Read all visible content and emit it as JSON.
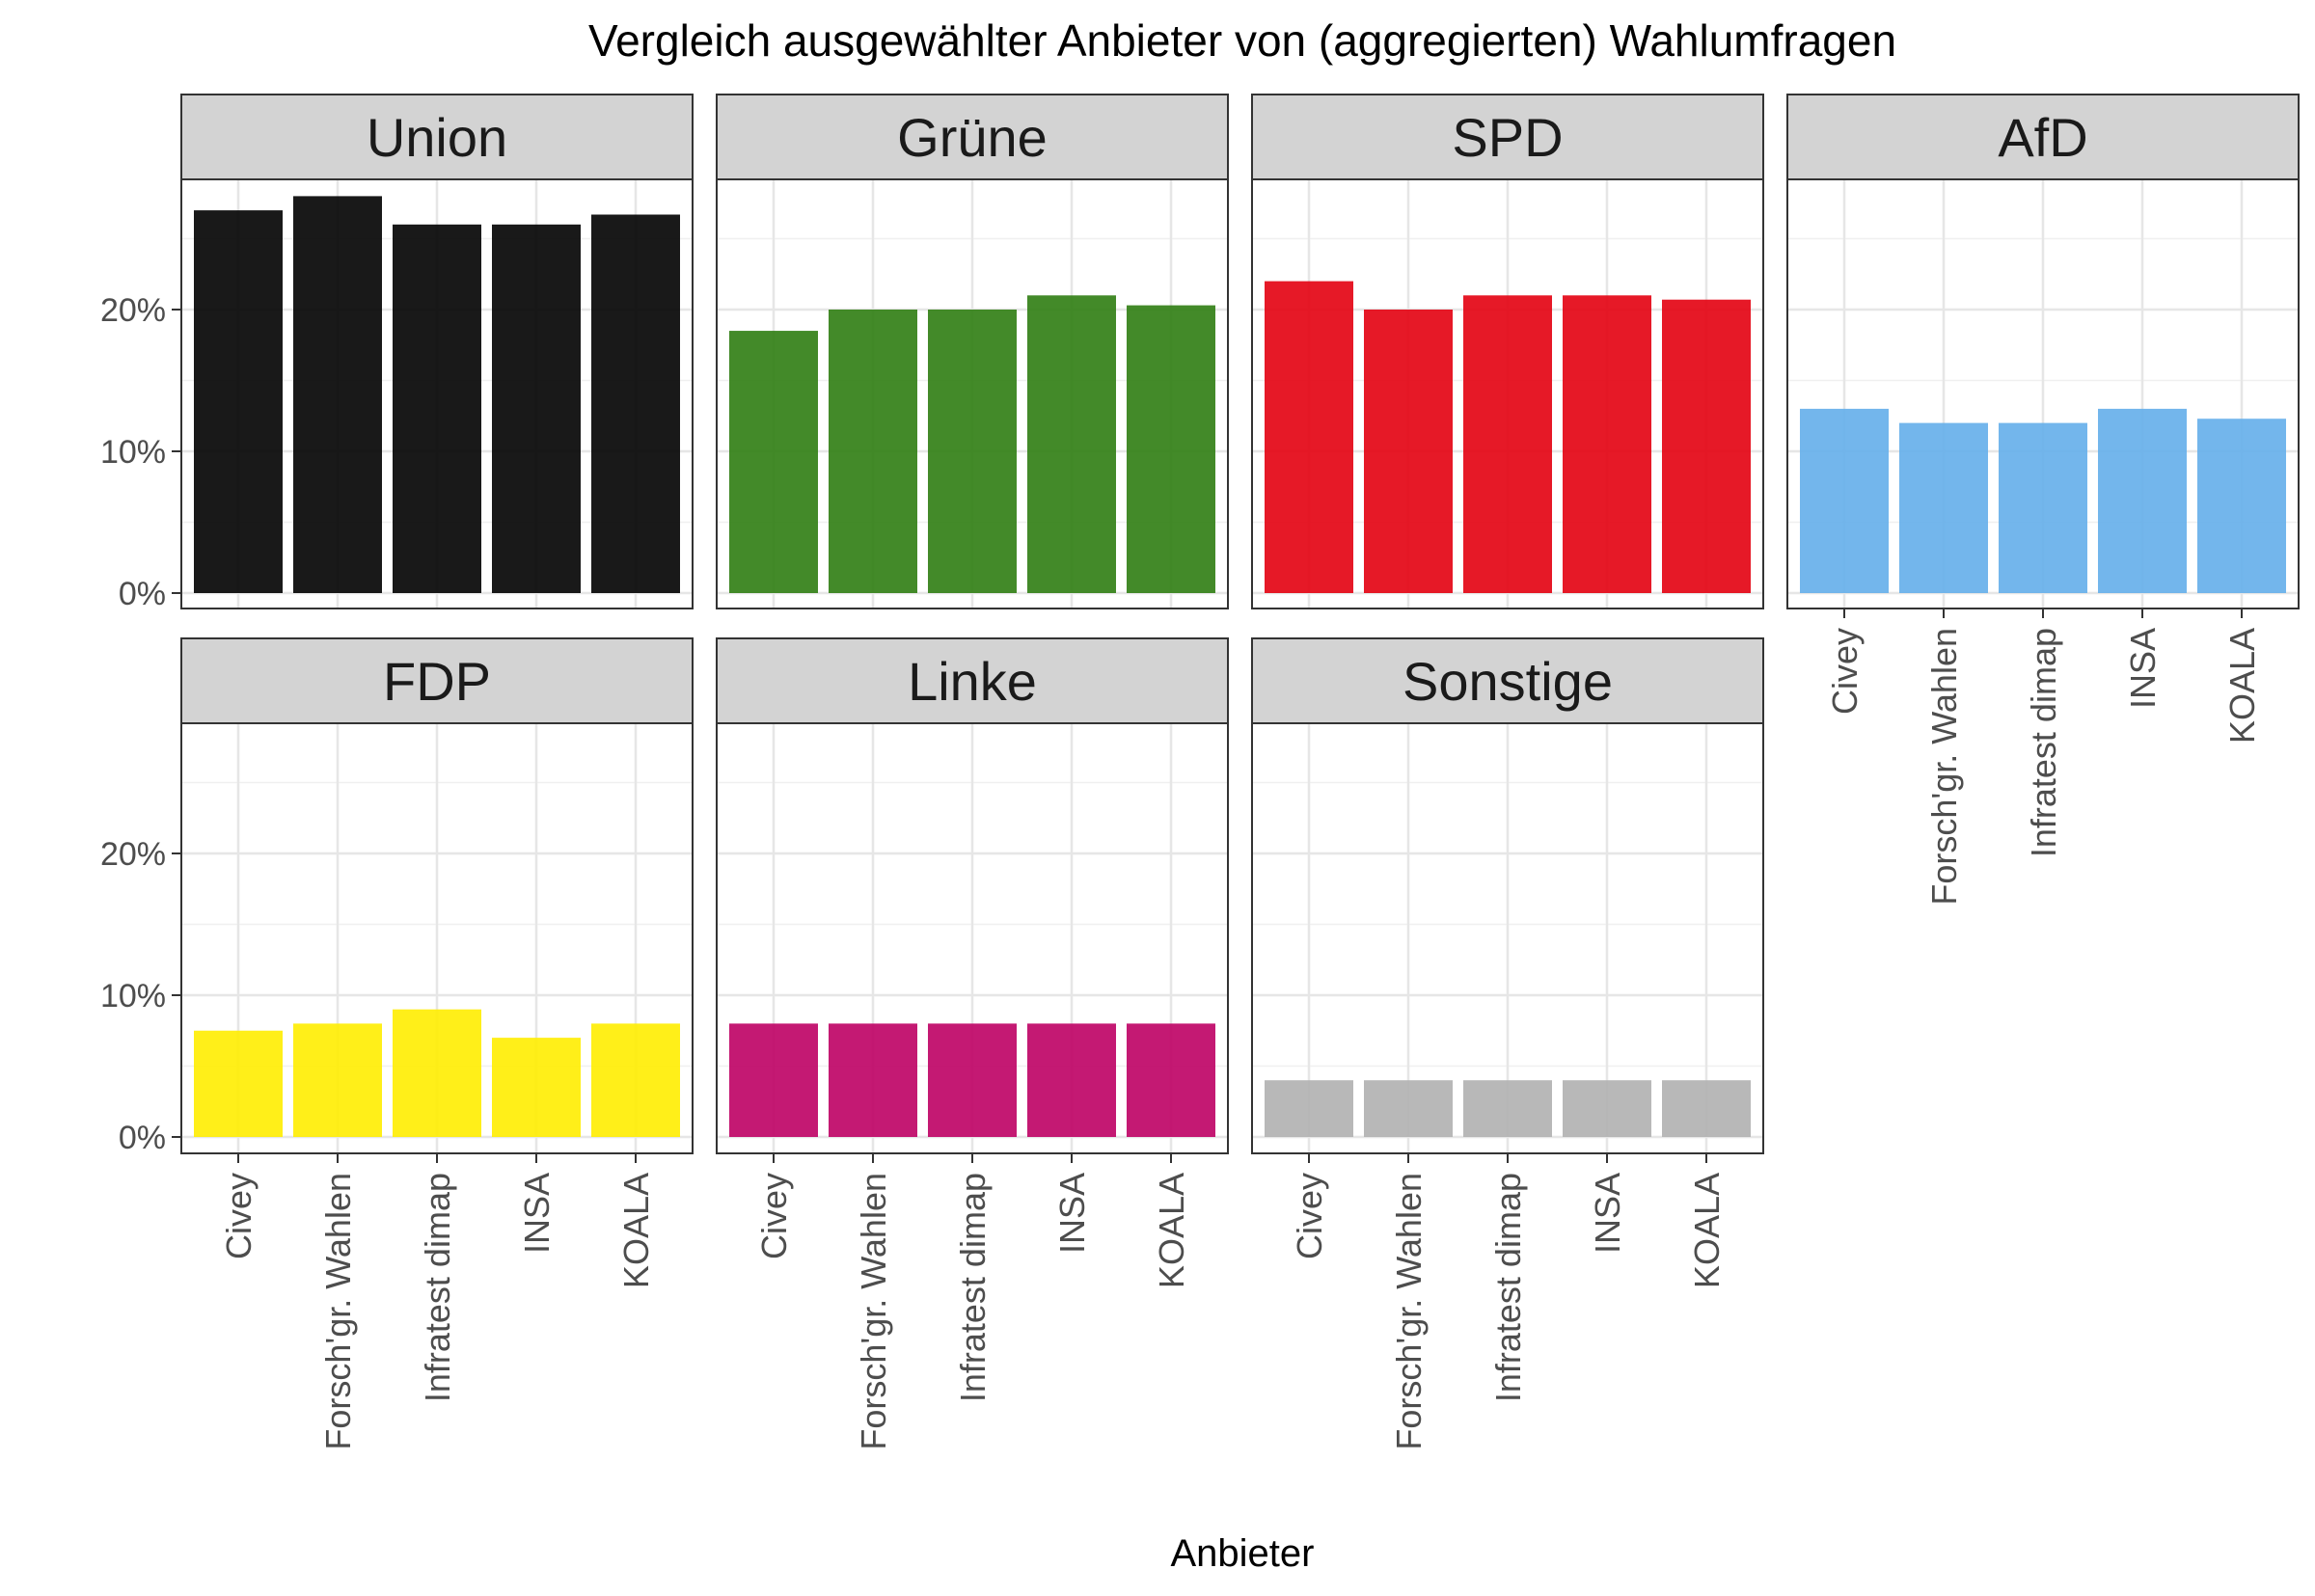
{
  "chart_data": {
    "type": "bar",
    "title": "Vergleich ausgewählter Anbieter von (aggregierten) Wahlumfragen",
    "xlabel": "Anbieter",
    "ylabel": "",
    "categories": [
      "Civey",
      "Forsch'gr. Wahlen",
      "Infratest dimap",
      "INSA",
      "KOALA"
    ],
    "yticks": [
      "0%",
      "10%",
      "20%"
    ],
    "ylim": [
      0,
      30
    ],
    "grid": true,
    "layout": "faceted 2 rows x 4 columns, shared y axis",
    "facets": [
      {
        "name": "Union",
        "color": "#000000",
        "values": [
          27,
          28,
          26,
          26,
          26.7
        ]
      },
      {
        "name": "Grüne",
        "color": "#2f7d12",
        "values": [
          18.5,
          20,
          20,
          21,
          20.3
        ]
      },
      {
        "name": "SPD",
        "color": "#e3000f",
        "values": [
          22,
          20,
          21,
          21,
          20.7
        ]
      },
      {
        "name": "AfD",
        "color": "#64aeea",
        "values": [
          13,
          12,
          12,
          13,
          12.3
        ]
      },
      {
        "name": "FDP",
        "color": "#ffed00",
        "values": [
          7.5,
          8,
          9,
          7,
          8
        ]
      },
      {
        "name": "Linke",
        "color": "#be0064",
        "values": [
          8,
          8,
          8,
          8,
          8
        ]
      },
      {
        "name": "Sonstige",
        "color": "#b0b0b0",
        "values": [
          4,
          4,
          4,
          4,
          4
        ]
      }
    ]
  }
}
